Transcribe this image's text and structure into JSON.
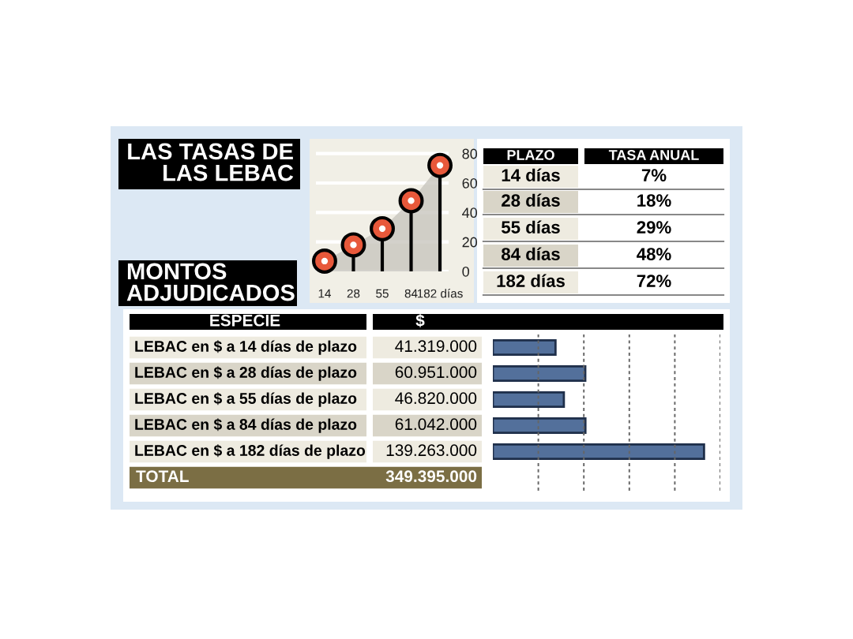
{
  "chart_data": [
    {
      "type": "lollipop",
      "title": "LAS TASAS DE LAS LEBAC",
      "categories": [
        "14",
        "28",
        "55",
        "84",
        "182 días"
      ],
      "series": [
        {
          "type": "area",
          "color": "#c8c5be",
          "values": [
            7,
            18,
            29,
            48,
            72
          ]
        },
        {
          "type": "lollipop",
          "color": "#e8583a",
          "values": [
            7,
            18,
            29,
            48,
            72
          ]
        }
      ],
      "ylim": [
        0,
        90
      ],
      "yticks": [
        0,
        20,
        40,
        60,
        80
      ],
      "grid": "y",
      "marker": "circle"
    },
    {
      "type": "other",
      "annotations": [
        "PLAZO",
        "TASA ANUAL",
        "14 días",
        "7%",
        "28 días",
        "18%",
        "55 días",
        "29%",
        "84 días",
        "48%",
        "182 días",
        "72%"
      ]
    },
    {
      "type": "bar",
      "orientation": "horizontal",
      "title": "MONTOS ADJUDICADOS",
      "categories": [
        "LEBAC en $ a 14 días de plazo",
        "LEBAC en $ a 28 días de plazo",
        "LEBAC en $ a 55 días de plazo",
        "LEBAC en $ a 84 días de plazo",
        "LEBAC en $ a 182 días de plazo"
      ],
      "values": [
        41319000,
        60951000,
        46820000,
        61042000,
        139263000
      ],
      "value_labels": [
        "41.319.000",
        "60.951.000",
        "46.820.000",
        "61.042.000",
        "139.263.000"
      ],
      "color": "#53709b",
      "xlim": [
        0,
        150000000
      ],
      "xticks": [
        {
          "value": 30000000,
          "label": null
        },
        {
          "value": 60000000,
          "label": null
        },
        {
          "value": 90000000,
          "label": null
        },
        {
          "value": 120000000,
          "label": null
        },
        {
          "value": 150000000,
          "label": null
        }
      ],
      "grid": "x",
      "tick_labels": "y",
      "annotations": [
        "ESPECIE",
        "$",
        "TOTAL",
        "349.395.000"
      ]
    }
  ]
}
